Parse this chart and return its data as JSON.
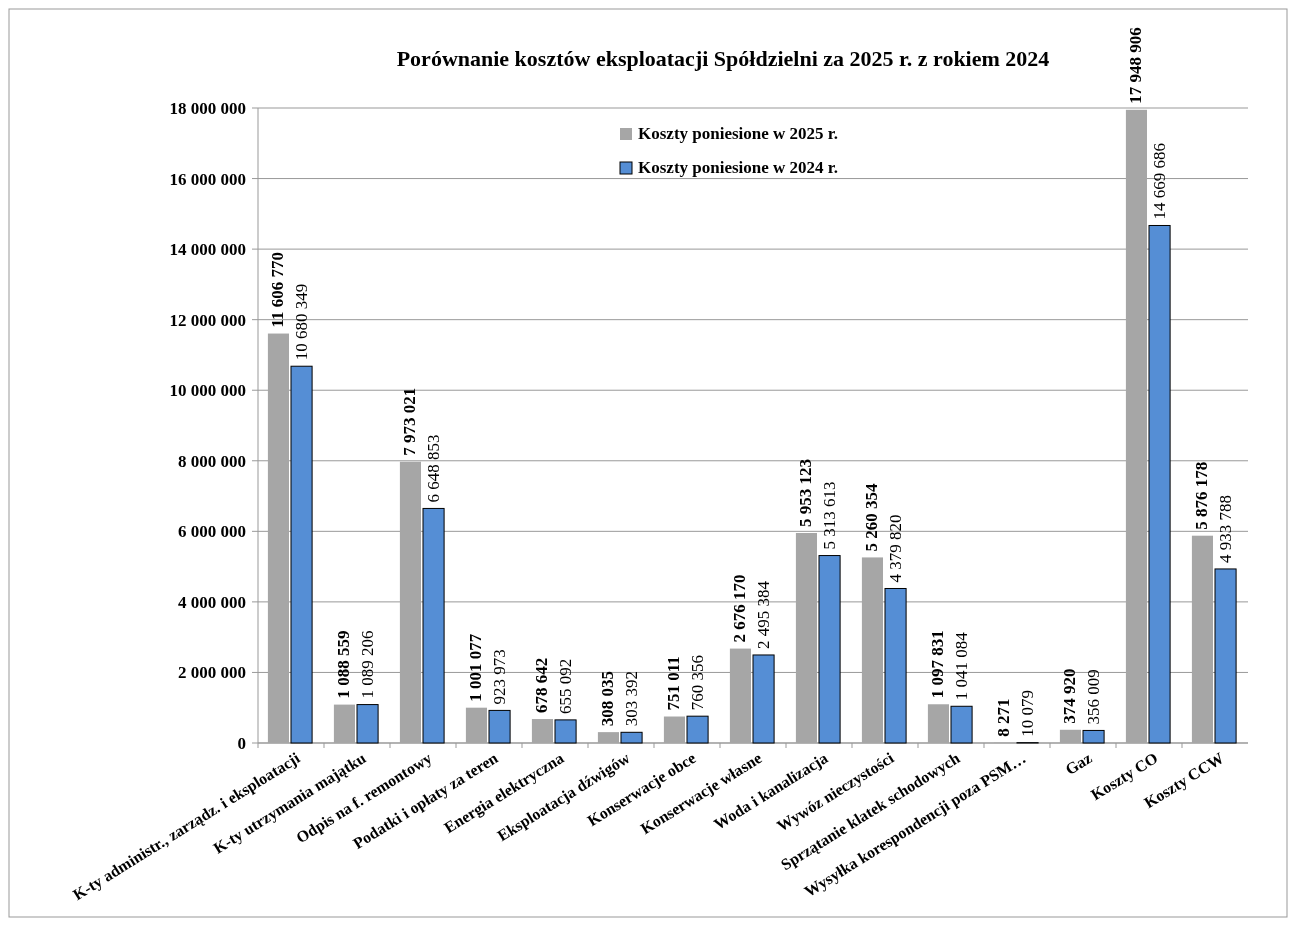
{
  "chart_data": {
    "type": "bar",
    "title": "Porównanie kosztów  eksploatacji Spółdzielni za 2025 r. z rokiem 2024",
    "categories": [
      "K-ty administr., zarządz. i eksploatacji",
      "K-ty utrzymania majątku",
      "Odpis na f. remontowy",
      "Podatki i opłaty za teren",
      "Energia elektryczna",
      "Eksploatacja dźwigów",
      "Konserwacje obce",
      "Konserwacje własne",
      "Woda i kanalizacja",
      "Wywóz nieczystości",
      "Sprzątanie klatek schodowych",
      "Wysyłka korespondencji poza PSM…",
      "Gaz",
      "Koszty CO",
      "Koszty CCW"
    ],
    "series": [
      {
        "name": "Koszty poniesione w 2025 r.",
        "color": "#a6a6a6",
        "values": [
          11606770,
          1088559,
          7973021,
          1001077,
          678642,
          308035,
          751011,
          2676170,
          5953123,
          5260354,
          1097831,
          8271,
          374920,
          17948906,
          5876178
        ],
        "value_labels": [
          "11 606 770",
          "1 088 559",
          "7 973 021",
          "1 001 077",
          "678 642",
          "308 035",
          "751 011",
          "2 676 170",
          "5 953 123",
          "5 260 354",
          "1 097 831",
          "8 271",
          "374 920",
          "17 948 906",
          "5 876 178"
        ]
      },
      {
        "name": "Koszty poniesione w 2024 r.",
        "color": "#558ed5",
        "values": [
          10680349,
          1089206,
          6648853,
          923973,
          655092,
          303392,
          760356,
          2495384,
          5313613,
          4379820,
          1041084,
          10079,
          356009,
          14669686,
          4933788
        ],
        "value_labels": [
          "10 680 349",
          "1 089 206",
          "6 648 853",
          "923 973",
          "655 092",
          "303 392",
          "760 356",
          "2 495 384",
          "5 313 613",
          "4 379 820",
          "1 041 084",
          "10 079",
          "356 009",
          "14 669 686",
          "4 933 788"
        ]
      }
    ],
    "ylim": [
      0,
      18000000
    ],
    "yticks": [
      {
        "value": 0,
        "label": "0"
      },
      {
        "value": 2000000,
        "label": "2 000 000"
      },
      {
        "value": 4000000,
        "label": "4 000 000"
      },
      {
        "value": 6000000,
        "label": "6 000 000"
      },
      {
        "value": 8000000,
        "label": "8 000 000"
      },
      {
        "value": 10000000,
        "label": "10 000 000"
      },
      {
        "value": 12000000,
        "label": "12 000 000"
      },
      {
        "value": 14000000,
        "label": "14 000 000"
      },
      {
        "value": 16000000,
        "label": "16 000 000"
      },
      {
        "value": 18000000,
        "label": "18 000 000"
      }
    ],
    "grid": "y",
    "legend": "top"
  }
}
